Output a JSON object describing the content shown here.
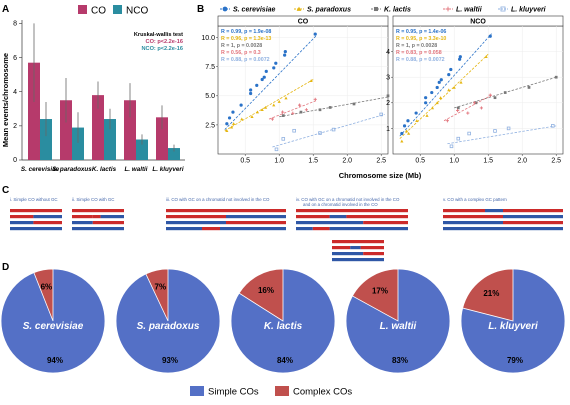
{
  "panel_labels": {
    "a": "A",
    "b": "B",
    "c": "C",
    "d": "D"
  },
  "colors": {
    "co": "#b63a6b",
    "nco": "#2a8da0",
    "blue": "#2f57a6",
    "red": "#cc2a2a",
    "pie_simple": "#5470c6",
    "pie_complex": "#c0504d"
  },
  "chart_data": [
    {
      "type": "bar",
      "legend": [
        {
          "name": "CO"
        },
        {
          "name": "NCO"
        }
      ],
      "categories": [
        "S. cerevisiae",
        "S. paradoxus",
        "K. lactis",
        "L. waltii",
        "L. kluyveri"
      ],
      "series": [
        {
          "name": "CO",
          "values": [
            5.7,
            3.5,
            3.8,
            3.5,
            2.5
          ],
          "errors": [
            2.3,
            1.3,
            0.8,
            1.0,
            0.7
          ]
        },
        {
          "name": "NCO",
          "values": [
            2.4,
            1.9,
            2.4,
            1.2,
            0.7
          ],
          "errors": [
            1.0,
            0.9,
            0.6,
            0.3,
            0.2
          ]
        }
      ],
      "ylabel": "Mean events/chromosome",
      "ylim": [
        0,
        8.2
      ],
      "yticks": [
        0,
        2,
        4,
        6,
        8
      ],
      "annotation": {
        "title": "Kruskal-wallis test",
        "co": "CO: p<2.2e-16",
        "nco": "NCO: p<2.2e-16"
      }
    },
    {
      "type": "scatter",
      "legend_items": [
        {
          "name": "S. cerevisiae",
          "color": "#2a72c8",
          "marker": "circle"
        },
        {
          "name": "S. paradoxus",
          "color": "#e5b612",
          "marker": "triangle"
        },
        {
          "name": "K. lactis",
          "color": "#777777",
          "marker": "square"
        },
        {
          "name": "L. waltii",
          "color": "#e2747c",
          "marker": "cross"
        },
        {
          "name": "L. kluyveri",
          "color": "#8fb0e0",
          "marker": "square-open"
        }
      ],
      "xlabel": "Chromosome size (Mb)",
      "xticks": [
        0.5,
        1.0,
        1.5,
        2.0,
        2.5
      ],
      "xlim": [
        0.1,
        2.6
      ],
      "panels": [
        {
          "title": "CO",
          "ylim": [
            0,
            11
          ],
          "yticks": [
            2.5,
            5.0,
            7.5,
            10.0
          ],
          "stats": [
            "R = 0.99, p = 1.9e-08",
            "R = 0.96, p = 1.3e-13",
            "R = 1, p = 0.0028",
            "R = 0.56, p = 0.3",
            "R = 0.88, p = 0.0072"
          ],
          "series": [
            {
              "name": "S. cerevisiae",
              "x": [
                0.23,
                0.27,
                0.32,
                0.44,
                0.58,
                0.58,
                0.67,
                0.75,
                0.78,
                0.81,
                0.92,
                0.95,
                1.08,
                1.09,
                1.53
              ],
              "y": [
                2.6,
                3.1,
                3.6,
                4.2,
                5.2,
                5.5,
                5.9,
                6.4,
                6.6,
                7.1,
                7.4,
                7.8,
                8.5,
                8.8,
                10.3
              ]
            },
            {
              "name": "S. paradoxus",
              "x": [
                0.23,
                0.3,
                0.33,
                0.45,
                0.6,
                0.68,
                0.75,
                0.8,
                0.92,
                1.0,
                1.1,
                1.47
              ],
              "y": [
                2.0,
                2.3,
                2.6,
                3.0,
                3.2,
                3.6,
                3.8,
                4.0,
                4.2,
                4.5,
                4.8,
                6.3
              ]
            },
            {
              "name": "K. lactis",
              "x": [
                1.06,
                1.32,
                1.6,
                1.75,
                2.1,
                2.6
              ],
              "y": [
                3.3,
                3.6,
                3.8,
                4.0,
                4.3,
                5.0
              ]
            },
            {
              "name": "L. waltii",
              "x": [
                0.9,
                1.05,
                1.2,
                1.3,
                1.4,
                1.53
              ],
              "y": [
                3.0,
                3.6,
                3.5,
                4.2,
                3.8,
                4.7
              ]
            },
            {
              "name": "L. kluyveri",
              "x": [
                0.96,
                1.06,
                1.22,
                1.6,
                1.8,
                2.5
              ],
              "y": [
                0.4,
                1.3,
                2.0,
                1.8,
                2.1,
                3.4
              ]
            }
          ],
          "fits": [
            {
              "name": "S. cerevisiae",
              "from": [
                0.2,
                2.1
              ],
              "to": [
                1.55,
                10.2
              ]
            },
            {
              "name": "S. paradoxus",
              "from": [
                0.2,
                2.0
              ],
              "to": [
                1.5,
                6.4
              ]
            },
            {
              "name": "K. lactis",
              "from": [
                1.0,
                3.2
              ],
              "to": [
                2.6,
                4.9
              ]
            },
            {
              "name": "L. waltii",
              "from": [
                0.85,
                3.0
              ],
              "to": [
                1.55,
                4.6
              ]
            },
            {
              "name": "L. kluyveri",
              "from": [
                0.9,
                0.6
              ],
              "to": [
                2.55,
                3.4
              ]
            }
          ]
        },
        {
          "title": "NCO",
          "ylim": [
            0,
            5
          ],
          "yticks": [
            1,
            2,
            3,
            4
          ],
          "stats": [
            "R = 0.95, p = 1.4e-06",
            "R = 0.95, p = 3.3e-10",
            "R = 1, p = 0.0028",
            "R = 0.83, p = 0.058",
            "R = 0.88, p = 0.0072"
          ],
          "series": [
            {
              "name": "S. cerevisiae",
              "x": [
                0.23,
                0.27,
                0.32,
                0.44,
                0.58,
                0.58,
                0.67,
                0.75,
                0.78,
                0.81,
                0.92,
                0.95,
                1.08,
                1.09,
                1.53
              ],
              "y": [
                0.8,
                1.1,
                1.3,
                1.6,
                2.0,
                2.2,
                2.4,
                2.6,
                2.8,
                2.9,
                3.1,
                3.3,
                3.7,
                3.8,
                4.6
              ]
            },
            {
              "name": "S. paradoxus",
              "x": [
                0.23,
                0.3,
                0.33,
                0.45,
                0.6,
                0.68,
                0.75,
                0.8,
                0.92,
                1.0,
                1.1,
                1.47
              ],
              "y": [
                0.5,
                0.9,
                0.8,
                1.3,
                1.5,
                1.8,
                2.0,
                2.2,
                2.5,
                2.6,
                2.8,
                3.8
              ]
            },
            {
              "name": "K. lactis",
              "x": [
                1.06,
                1.32,
                1.6,
                1.75,
                2.1,
                2.5
              ],
              "y": [
                1.8,
                2.0,
                2.2,
                2.4,
                2.6,
                3.0
              ]
            },
            {
              "name": "L. waltii",
              "x": [
                0.9,
                1.05,
                1.2,
                1.3,
                1.4,
                1.53
              ],
              "y": [
                1.3,
                1.7,
                1.6,
                2.0,
                1.8,
                2.3
              ]
            },
            {
              "name": "L. kluyveri",
              "x": [
                0.96,
                1.06,
                1.22,
                1.6,
                1.8,
                2.45
              ],
              "y": [
                0.3,
                0.6,
                0.8,
                0.9,
                1.0,
                1.1
              ]
            }
          ],
          "fits": [
            {
              "name": "S. cerevisiae",
              "from": [
                0.2,
                0.7
              ],
              "to": [
                1.55,
                4.7
              ]
            },
            {
              "name": "S. paradoxus",
              "from": [
                0.2,
                0.6
              ],
              "to": [
                1.5,
                3.9
              ]
            },
            {
              "name": "K. lactis",
              "from": [
                1.0,
                1.8
              ],
              "to": [
                2.5,
                3.0
              ]
            },
            {
              "name": "L. waltii",
              "from": [
                0.85,
                1.3
              ],
              "to": [
                1.55,
                2.3
              ]
            },
            {
              "name": "L. kluyveri",
              "from": [
                0.9,
                0.4
              ],
              "to": [
                2.5,
                1.1
              ]
            }
          ]
        }
      ]
    },
    {
      "type": "pie",
      "legend": [
        {
          "name": "Simple COs"
        },
        {
          "name": "Complex COs"
        }
      ],
      "pies": [
        {
          "title": "S. cerevisiae",
          "simple": 94,
          "complex": 6,
          "simple_label": "94%",
          "complex_label": "6%"
        },
        {
          "title": "S. paradoxus",
          "simple": 93,
          "complex": 7,
          "simple_label": "93%",
          "complex_label": "7%"
        },
        {
          "title": "K. lactis",
          "simple": 84,
          "complex": 16,
          "simple_label": "84%",
          "complex_label": "16%"
        },
        {
          "title": "L. waltii",
          "simple": 83,
          "complex": 17,
          "simple_label": "83%",
          "complex_label": "17%"
        },
        {
          "title": "L. kluyveri",
          "simple": 79,
          "complex": 21,
          "simple_label": "79%",
          "complex_label": "21%"
        }
      ]
    }
  ],
  "panel_c": {
    "titles": [
      "i. Simple CO without GC",
      "ii. Simple CO with GC",
      "iii. CO with GC on a chromatid not involved in the CO",
      "iv. CO with GC on a chromatid not involved in the CO",
      "v. CO with a complex GC pattern"
    ],
    "subtitle_iv": "and on a chromatid involved in the CO"
  }
}
